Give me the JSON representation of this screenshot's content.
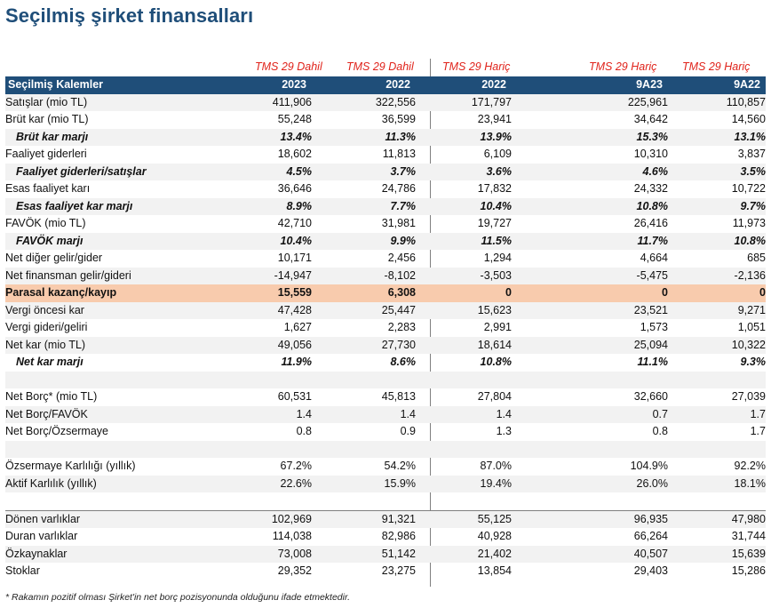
{
  "title": "Seçilmiş şirket finansalları",
  "tms_labels": [
    "TMS 29 Dahil",
    "TMS 29 Dahil",
    "TMS 29 Hariç",
    "TMS 29 Hariç",
    "TMS 29 Hariç"
  ],
  "header": {
    "label": "Seçilmiş Kalemler",
    "cols": [
      "2023",
      "2022",
      "2022",
      "9A23",
      "9A22"
    ]
  },
  "rows": [
    {
      "label": "Satışlar (mio TL)",
      "values": [
        "411,906",
        "322,556",
        "171,797",
        "225,961",
        "110,857"
      ]
    },
    {
      "label": "Brüt kar (mio TL)",
      "values": [
        "55,248",
        "36,599",
        "23,941",
        "34,642",
        "14,560"
      ]
    },
    {
      "label": "Brüt kar marjı",
      "values": [
        "13.4%",
        "11.3%",
        "13.9%",
        "15.3%",
        "13.1%"
      ]
    },
    {
      "label": "Faaliyet giderleri",
      "values": [
        "18,602",
        "11,813",
        "6,109",
        "10,310",
        "3,837"
      ]
    },
    {
      "label": "Faaliyet giderleri/satışlar",
      "values": [
        "4.5%",
        "3.7%",
        "3.6%",
        "4.6%",
        "3.5%"
      ]
    },
    {
      "label": "Esas faaliyet karı",
      "values": [
        "36,646",
        "24,786",
        "17,832",
        "24,332",
        "10,722"
      ]
    },
    {
      "label": "Esas faaliyet kar marjı",
      "values": [
        "8.9%",
        "7.7%",
        "10.4%",
        "10.8%",
        "9.7%"
      ]
    },
    {
      "label": "FAVÖK (mio TL)",
      "values": [
        "42,710",
        "31,981",
        "19,727",
        "26,416",
        "11,973"
      ]
    },
    {
      "label": "FAVÖK marjı",
      "values": [
        "10.4%",
        "9.9%",
        "11.5%",
        "11.7%",
        "10.8%"
      ]
    },
    {
      "label": "Net diğer gelir/gider",
      "values": [
        "10,171",
        "2,456",
        "1,294",
        "4,664",
        "685"
      ]
    },
    {
      "label": "Net finansman gelir/gideri",
      "values": [
        "-14,947",
        "-8,102",
        "-3,503",
        "-5,475",
        "-2,136"
      ]
    },
    {
      "label": "Parasal kazanç/kayıp",
      "values": [
        "15,559",
        "6,308",
        "0",
        "0",
        "0"
      ]
    },
    {
      "label": "Vergi öncesi kar",
      "values": [
        "47,428",
        "25,447",
        "15,623",
        "23,521",
        "9,271"
      ]
    },
    {
      "label": "Vergi gideri/geliri",
      "values": [
        "1,627",
        "2,283",
        "2,991",
        "1,573",
        "1,051"
      ]
    },
    {
      "label": "Net kar (mio TL)",
      "values": [
        "49,056",
        "27,730",
        "18,614",
        "25,094",
        "10,322"
      ]
    },
    {
      "label": "Net kar marjı",
      "values": [
        "11.9%",
        "8.6%",
        "10.8%",
        "11.1%",
        "9.3%"
      ]
    },
    {
      "label": "",
      "values": [
        "",
        "",
        "",
        "",
        ""
      ]
    },
    {
      "label": "Net Borç* (mio TL)",
      "values": [
        "60,531",
        "45,813",
        "27,804",
        "32,660",
        "27,039"
      ]
    },
    {
      "label": "Net Borç/FAVÖK",
      "values": [
        "1.4",
        "1.4",
        "1.4",
        "0.7",
        "1.7"
      ]
    },
    {
      "label": "Net Borç/Özsermaye",
      "values": [
        "0.8",
        "0.9",
        "1.3",
        "0.8",
        "1.7"
      ]
    },
    {
      "label": "",
      "values": [
        "",
        "",
        "",
        "",
        ""
      ]
    },
    {
      "label": "Özsermaye Karlılığı (yıllık)",
      "values": [
        "67.2%",
        "54.2%",
        "87.0%",
        "104.9%",
        "92.2%"
      ]
    },
    {
      "label": "Aktif Karlılık (yıllık)",
      "values": [
        "22.6%",
        "15.9%",
        "19.4%",
        "26.0%",
        "18.1%"
      ]
    },
    {
      "label": "",
      "values": [
        "",
        "",
        "",
        "",
        ""
      ]
    },
    {
      "label": "Dönen varlıklar",
      "values": [
        "102,969",
        "91,321",
        "55,125",
        "96,935",
        "47,980"
      ]
    },
    {
      "label": "Duran varlıklar",
      "values": [
        "114,038",
        "82,986",
        "40,928",
        "66,264",
        "31,744"
      ]
    },
    {
      "label": "Özkaynaklar",
      "values": [
        "73,008",
        "51,142",
        "21,402",
        "40,507",
        "15,639"
      ]
    },
    {
      "label": "Stoklar",
      "values": [
        "29,352",
        "23,275",
        "13,854",
        "29,403",
        "15,286"
      ]
    }
  ],
  "footnote": "* Rakamın pozitif olması Şirket'in net borç pozisyonunda olduğunu ifade etmektedir."
}
